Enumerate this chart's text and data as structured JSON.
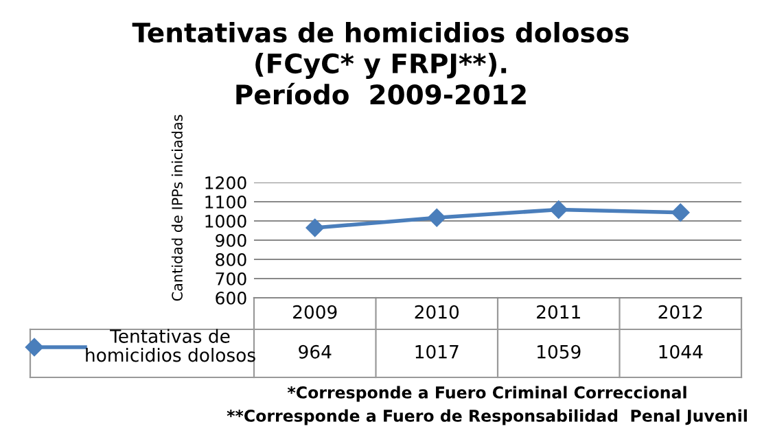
{
  "chart_data": {
    "type": "line",
    "title": "Tentativas de homicidios dolosos\n(FCyC* y FRPJ**).\nPeríodo  2009-2012",
    "ylabel": "Cantidad de IPPs iniciadas",
    "categories": [
      "2009",
      "2010",
      "2011",
      "2012"
    ],
    "series": [
      {
        "name": "Tentativas de\nhomicidios dolosos",
        "color": "#4a7ebb",
        "values": [
          964,
          1017,
          1059,
          1044
        ]
      }
    ],
    "ylim": [
      600,
      1200
    ],
    "yticks": [
      600,
      700,
      800,
      900,
      1000,
      1100,
      1200
    ],
    "grid": "y",
    "marker": "diamond",
    "line_style": "solid",
    "data_labels": true,
    "annotations": [
      "*Corresponde a Fuero Criminal Correccional",
      "**Corresponde a Fuero de Responsabilidad  Penal Juvenil"
    ]
  }
}
